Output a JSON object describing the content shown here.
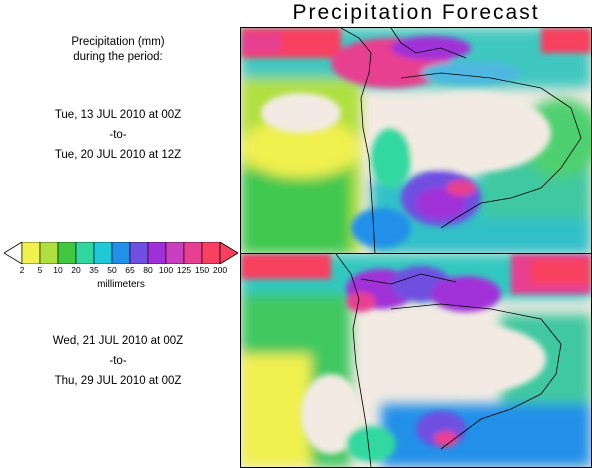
{
  "title": "Precipitation Forecast",
  "legend": {
    "line1": "Precipitation (mm)",
    "line2": "during the period:"
  },
  "period1": {
    "start": "Tue, 13 JUL 2010 at 00Z",
    "sep": "-to-",
    "end": "Tue, 20 JUL 2010 at 12Z"
  },
  "period2": {
    "start": "Wed, 21 JUL 2010 at 00Z",
    "sep": "-to-",
    "end": "Thu, 29 JUL 2010 at 00Z"
  },
  "scale": {
    "ticks": [
      "2",
      "5",
      "10",
      "20",
      "35",
      "50",
      "65",
      "80",
      "100",
      "125",
      "150",
      "200"
    ],
    "colors": [
      "#f0f050",
      "#b0e040",
      "#40c840",
      "#30d8a0",
      "#20c8d8",
      "#2090e8",
      "#7050e0",
      "#a030d8",
      "#c840c0",
      "#e84090",
      "#f84060"
    ],
    "units": "millimeters"
  }
}
